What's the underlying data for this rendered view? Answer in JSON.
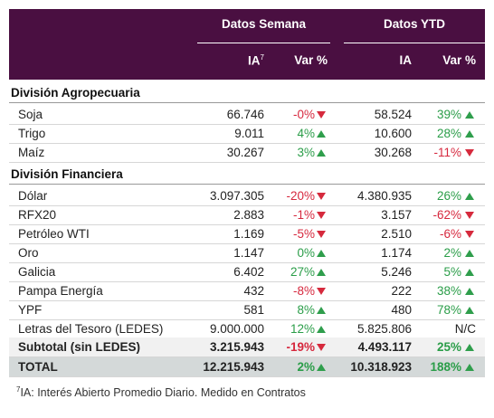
{
  "header": {
    "groups": [
      "Datos Semana",
      "Datos YTD"
    ],
    "columns": [
      "IA",
      "Var %",
      "IA",
      "Var %"
    ],
    "ia_mark": "7"
  },
  "sections": [
    {
      "title": "División Agropecuaria",
      "rows": [
        {
          "cells": [
            "Soja",
            "66.746",
            "-0%",
            "58.524",
            "39%"
          ],
          "trend": [
            "down",
            "up"
          ]
        },
        {
          "cells": [
            "Trigo",
            "9.011",
            "4%",
            "10.600",
            "28%"
          ],
          "trend": [
            "up",
            "up"
          ]
        },
        {
          "cells": [
            "Maíz",
            "30.267",
            "3%",
            "30.268",
            "-11%"
          ],
          "trend": [
            "up",
            "down"
          ]
        }
      ]
    },
    {
      "title": "División Financiera",
      "rows": [
        {
          "cells": [
            "Dólar",
            "3.097.305",
            "-20%",
            "4.380.935",
            "26%"
          ],
          "trend": [
            "down",
            "up"
          ]
        },
        {
          "cells": [
            "RFX20",
            "2.883",
            "-1%",
            "3.157",
            "-62%"
          ],
          "trend": [
            "down",
            "down"
          ]
        },
        {
          "cells": [
            "Petróleo WTI",
            "1.169",
            "-5%",
            "2.510",
            "-6%"
          ],
          "trend": [
            "down",
            "down"
          ]
        },
        {
          "cells": [
            "Oro",
            "1.147",
            "0%",
            "1.174",
            "2%"
          ],
          "trend": [
            "up",
            "up"
          ]
        },
        {
          "cells": [
            "Galicia",
            "6.402",
            "27%",
            "5.246",
            "5%"
          ],
          "trend": [
            "up",
            "up"
          ]
        },
        {
          "cells": [
            "Pampa Energía",
            "432",
            "-8%",
            "222",
            "38%"
          ],
          "trend": [
            "down",
            "up"
          ]
        },
        {
          "cells": [
            "YPF",
            "581",
            "8%",
            "480",
            "78%"
          ],
          "trend": [
            "up",
            "up"
          ]
        },
        {
          "cells": [
            "Letras del Tesoro (LEDES)",
            "9.000.000",
            "12%",
            "5.825.806",
            "N/C"
          ],
          "trend": [
            "up",
            null
          ]
        }
      ]
    }
  ],
  "subtotal": {
    "cells": [
      "Subtotal (sin LEDES)",
      "3.215.943",
      "-19%",
      "4.493.117",
      "25%"
    ],
    "trend": [
      "down",
      "up"
    ]
  },
  "total": {
    "cells": [
      "TOTAL",
      "12.215.943",
      "2%",
      "10.318.923",
      "188%"
    ],
    "trend": [
      "up",
      "up"
    ]
  },
  "footnote": {
    "mark": "7",
    "text": "IA: Interés Abierto Promedio Diario. Medido en Contratos"
  }
}
